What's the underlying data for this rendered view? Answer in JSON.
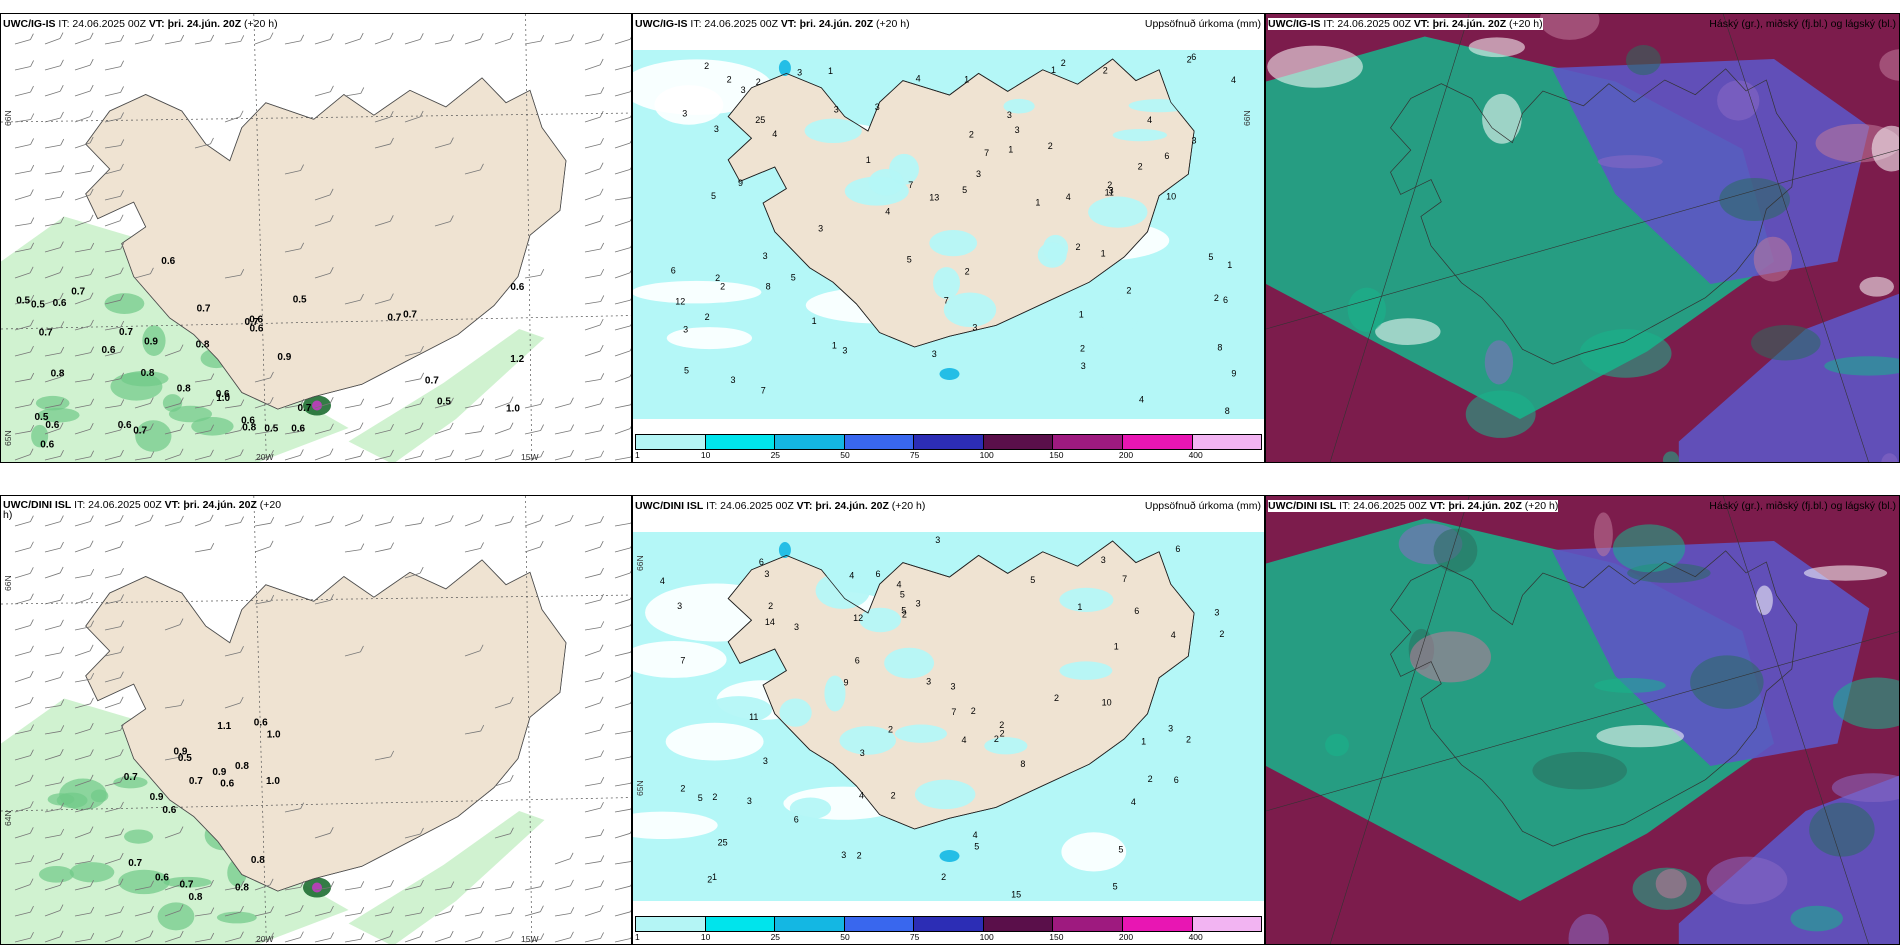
{
  "rows": [
    {
      "panels": [
        {
          "kind": "wind",
          "model": "UWC/IG-IS",
          "it": "IT: 24.06.2025 00Z",
          "vt_label": "VT:",
          "vt": "þri. 24.jún. 20Z",
          "lead": "(+20 h)",
          "right_title": "",
          "lat_labels": [
            "66N",
            "65N"
          ],
          "lon_labels": [
            "20W",
            "15W"
          ],
          "values": [
            "0.7",
            "0.6",
            "0.6",
            "0.6",
            "0.5",
            "0.5",
            "0.5",
            "0.7",
            "0.8",
            "0.6",
            "0.5",
            "0.7",
            "0.8",
            "0.6",
            "0.6",
            "0.7",
            "0.5",
            "0.6",
            "0.7",
            "0.9",
            "0.8",
            "0.7",
            "0.6",
            "0.8",
            "0.8",
            "0.9",
            "1.0",
            "0.6",
            "0.6",
            "0.7",
            "0.6",
            "1.0",
            "1.2",
            "0.7",
            "0.5",
            "0.7",
            "0.6",
            "0.7"
          ]
        },
        {
          "kind": "precip",
          "model": "UWC/IG-IS",
          "it": "IT: 24.06.2025 00Z",
          "vt_label": "VT:",
          "vt": "þri. 24.jún. 20Z",
          "lead": "(+20 h)",
          "right_title": "Uppsöfnuð úrkoma (mm)",
          "lat_labels": [
            "66N",
            "65N"
          ],
          "values": [
            "2",
            "1",
            "3",
            "2",
            "1",
            "5",
            "1",
            "1",
            "2",
            "2",
            "1",
            "4",
            "2",
            "2",
            "3",
            "2",
            "1",
            "3",
            "3",
            "2",
            "1",
            "9",
            "5",
            "8",
            "3",
            "2",
            "3",
            "1",
            "4",
            "3",
            "5",
            "2",
            "2",
            "1",
            "3",
            "4",
            "2",
            "3",
            "1",
            "2",
            "10",
            "5",
            "3",
            "3",
            "4",
            "2",
            "2",
            "3",
            "3",
            "6",
            "4",
            "3",
            "3",
            "5",
            "12",
            "11",
            "7",
            "7",
            "9",
            "3",
            "6",
            "2",
            "6",
            "4",
            "3",
            "3",
            "5",
            "6",
            "8",
            "7",
            "7",
            "3",
            "2",
            "1",
            "8",
            "4",
            "2",
            "13",
            "25"
          ],
          "legend_ticks": [
            "1",
            "10",
            "25",
            "50",
            "75",
            "100",
            "150",
            "200",
            "400"
          ]
        },
        {
          "kind": "cloud",
          "model": "UWC/IG-IS",
          "it": "IT: 24.06.2025 00Z",
          "vt_label": "VT:",
          "vt": "þri. 24.jún. 20Z",
          "lead": "(+20 h)",
          "right_title": "Háský (gr.), miðský (fj.bl.) og lágský (bl.)"
        }
      ]
    },
    {
      "panels": [
        {
          "kind": "wind",
          "model": "UWC/DINI ISL",
          "it": "IT: 24.06.2025 00Z",
          "vt_label": "VT:",
          "vt": "þri. 24.jún. 20Z",
          "lead": "(+20",
          "lead_wrap": "h)",
          "right_title": "",
          "lat_labels": [
            "66N",
            "64N"
          ],
          "lon_labels": [
            "20W",
            "15W"
          ],
          "values": [
            "0.6",
            "0.6",
            "0.9",
            "1.0",
            "0.9",
            "0.6",
            "0.7",
            "0.5",
            "0.7",
            "0.8",
            "0.7",
            "1.0",
            "0.8",
            "0.8",
            "0.6",
            "0.9",
            "0.8",
            "0.7",
            "1.1"
          ]
        },
        {
          "kind": "precip",
          "model": "UWC/DINI ISL",
          "it": "IT: 24.06.2025 00Z",
          "vt_label": "VT:",
          "vt": "þri. 24.jún. 20Z",
          "lead": "(+20 h)",
          "right_title": "Uppsöfnuð úrkoma (mm)",
          "lat_labels": [
            "66N",
            "65N"
          ],
          "values": [
            "3",
            "2",
            "2",
            "2",
            "2",
            "3",
            "2",
            "1",
            "2",
            "2",
            "4",
            "2",
            "3",
            "3",
            "2",
            "6",
            "7",
            "12",
            "5",
            "3",
            "8",
            "3",
            "3",
            "3",
            "2",
            "5",
            "3",
            "2",
            "15",
            "10",
            "1",
            "2",
            "4",
            "4",
            "3",
            "2",
            "3",
            "1",
            "6",
            "5",
            "11",
            "6",
            "4",
            "4",
            "2",
            "5",
            "3",
            "5",
            "6",
            "6",
            "9",
            "3",
            "5",
            "7",
            "4",
            "6",
            "2",
            "1",
            "2",
            "3",
            "4",
            "5",
            "6",
            "7",
            "4",
            "2",
            "14",
            "25"
          ],
          "legend_ticks": [
            "1",
            "10",
            "25",
            "50",
            "75",
            "100",
            "150",
            "200",
            "400"
          ]
        },
        {
          "kind": "cloud",
          "model": "UWC/DINI ISL",
          "it": "IT: 24.06.2025 00Z",
          "vt_label": "VT:",
          "vt": "þri. 24.jún. 20Z",
          "lead": "(+20 h)",
          "right_title": "Háský (gr.), miðský (fj.bl.) og lágský (bl.)"
        }
      ]
    }
  ],
  "legend_colors": [
    "#b4f5f5",
    "#00e4ec",
    "#14b7e3",
    "#3967ee",
    "#2c2db5",
    "#5a0f4a",
    "#9e1a7f",
    "#e816b3",
    "#f2b4f2"
  ],
  "colors": {
    "land": "#efe3d2",
    "wind_green": "#c8f0c8",
    "wind_green_dark": "#1e6e32",
    "precip_cyan": "#b4f7f7",
    "cloud_maroon": "#7c1c4c",
    "cloud_green": "#18b48c",
    "cloud_blue": "#5e55c4"
  }
}
